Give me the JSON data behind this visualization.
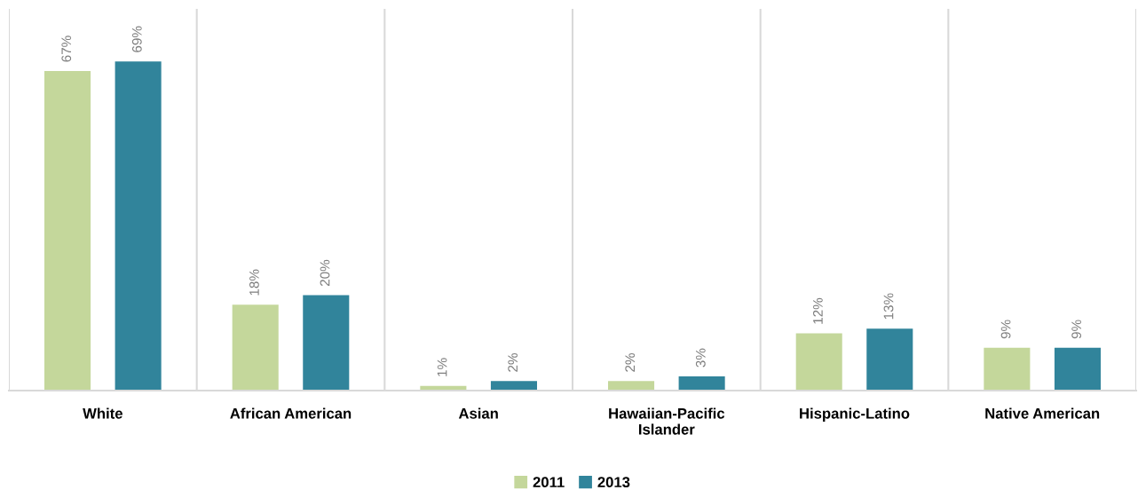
{
  "chart_data": {
    "type": "bar",
    "categories": [
      "White",
      "African American",
      "Asian",
      "Hawaiian-Pacific\nIslander",
      "Hispanic-Latino",
      "Native American"
    ],
    "series": [
      {
        "name": "2011",
        "color": "#c4d79b",
        "values": [
          67,
          18,
          1,
          2,
          12,
          9
        ],
        "value_labels": [
          "67%",
          "18%",
          "1%",
          "2%",
          "12%",
          "9%"
        ]
      },
      {
        "name": "2013",
        "color": "#31849b",
        "values": [
          69,
          20,
          2,
          3,
          13,
          9
        ],
        "value_labels": [
          "69%",
          "20%",
          "2%",
          "3%",
          "13%",
          "9%"
        ]
      }
    ],
    "grid": "x",
    "legend": "bottom"
  }
}
